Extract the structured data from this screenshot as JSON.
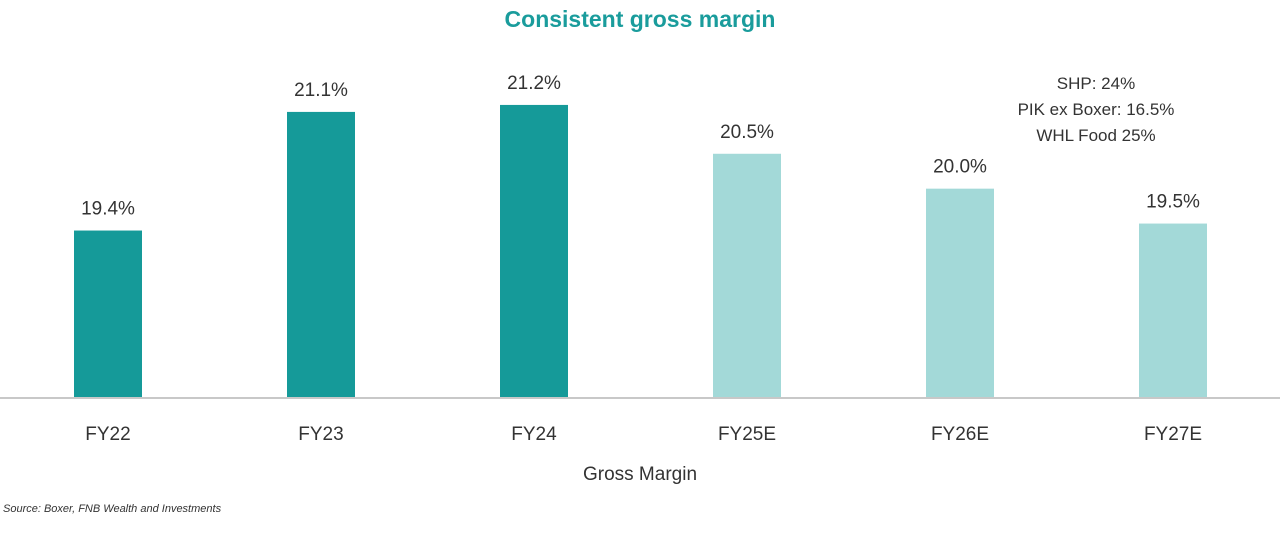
{
  "chart_data": {
    "type": "bar",
    "title": "Consistent gross margin",
    "categories": [
      "FY22",
      "FY23",
      "FY24",
      "FY25E",
      "FY26E",
      "FY27E"
    ],
    "values": [
      19.4,
      21.1,
      21.2,
      20.5,
      20.0,
      19.5
    ],
    "value_labels": [
      "19.4%",
      "21.1%",
      "21.2%",
      "20.5%",
      "20.0%",
      "19.5%"
    ],
    "estimate": [
      false,
      false,
      false,
      true,
      true,
      true
    ],
    "xlabel": "Gross Margin",
    "ylabel": "",
    "ylim": [
      17,
      21.5
    ],
    "grid": false,
    "colors": {
      "actual": "#159a99",
      "estimate": "#a3d9d8",
      "title": "#1a9c9c",
      "axis": "#c8c8c8",
      "text": "#333333"
    }
  },
  "annotation": {
    "lines": [
      "SHP: 24%",
      "PIK ex Boxer: 16.5%",
      "WHL Food 25%"
    ]
  },
  "source": "Source: Boxer, FNB Wealth and Investments"
}
